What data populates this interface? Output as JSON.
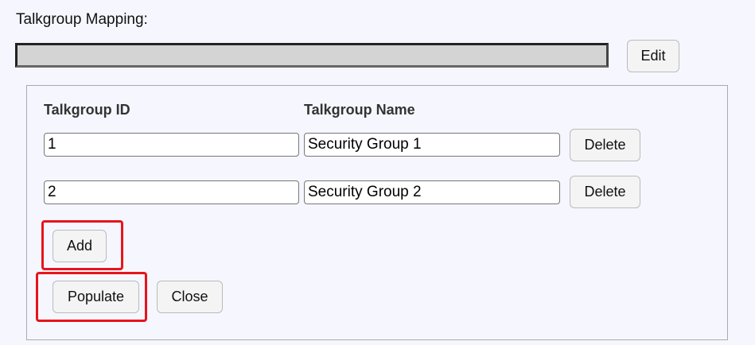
{
  "title": "Talkgroup Mapping:",
  "mapping_value": "",
  "edit_label": "Edit",
  "headers": {
    "id": "Talkgroup ID",
    "name": "Talkgroup Name"
  },
  "rows": [
    {
      "id": "1",
      "name": "Security Group 1",
      "delete_label": "Delete"
    },
    {
      "id": "2",
      "name": "Security Group 2",
      "delete_label": "Delete"
    }
  ],
  "add_label": "Add",
  "populate_label": "Populate",
  "close_label": "Close",
  "highlight_color": "#e8141c"
}
